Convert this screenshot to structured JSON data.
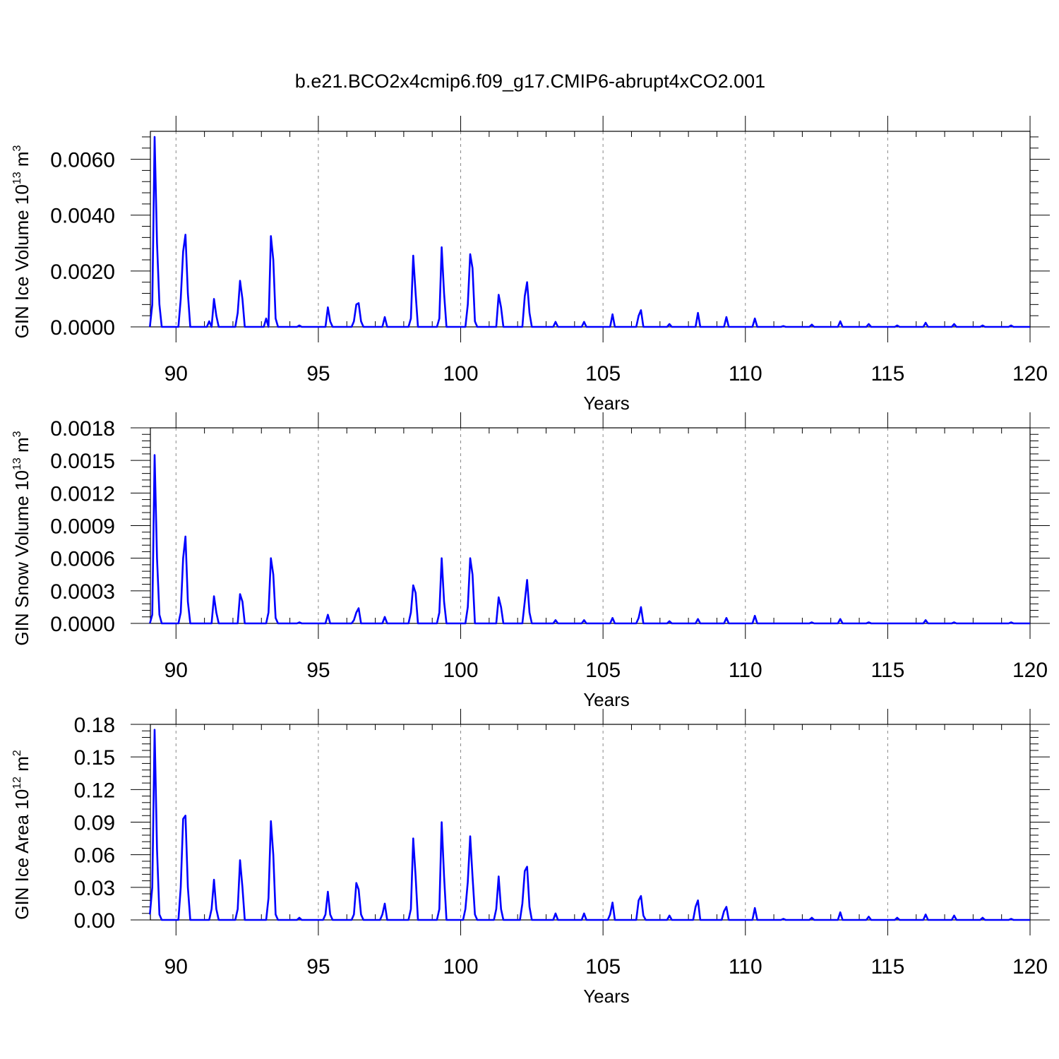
{
  "figure_title": "b.e21.BCO2x4cmip6.f09_g17.CMIP6-abrupt4xCO2.001",
  "colors": {
    "series": "#0000ff",
    "axes": "#000000",
    "grid": "#888888"
  },
  "chart_data": [
    {
      "type": "line",
      "title": "b.e21.BCO2x4cmip6.f09_g17.CMIP6-abrupt4xCO2.001",
      "xlabel": "Years",
      "ylabel": {
        "text": "GIN Ice Volume 10",
        "sup": "13",
        "unit": " m",
        "unit_sup": "3"
      },
      "xlim": [
        89.1,
        120
      ],
      "ylim": [
        0,
        0.007
      ],
      "xticks": [
        90,
        95,
        100,
        105,
        110,
        115,
        120
      ],
      "xtick_labels": [
        "90",
        "95",
        "100",
        "105",
        "110",
        "115",
        "120"
      ],
      "yticks": [
        0.0,
        0.002,
        0.004,
        0.006
      ],
      "ytick_labels": [
        "0.0000",
        "0.0020",
        "0.0040",
        "0.0060"
      ],
      "grid": "vertical dashed at major x ticks",
      "series": [
        {
          "color": "#0000ff",
          "base": 0.0,
          "peaks": [
            [
              89.2,
              0.0008
            ],
            [
              89.29,
              0.0068
            ],
            [
              89.37,
              0.003
            ],
            [
              89.45,
              0.0008
            ],
            [
              90.2,
              0.001
            ],
            [
              90.27,
              0.0027
            ],
            [
              90.33,
              0.0033
            ],
            [
              90.42,
              0.0012
            ],
            [
              91.2,
              0.0002
            ],
            [
              91.33,
              0.001
            ],
            [
              91.42,
              0.0004
            ],
            [
              92.2,
              0.0005
            ],
            [
              92.29,
              0.00165
            ],
            [
              92.37,
              0.001
            ],
            [
              93.2,
              0.0003
            ],
            [
              93.33,
              0.00325
            ],
            [
              93.42,
              0.0024
            ],
            [
              93.5,
              0.0003
            ],
            [
              94.33,
              5e-05
            ],
            [
              95.33,
              0.0007
            ],
            [
              95.42,
              0.0002
            ],
            [
              96.25,
              0.0002
            ],
            [
              96.33,
              0.0008
            ],
            [
              96.42,
              0.00085
            ],
            [
              96.5,
              0.0002
            ],
            [
              97.33,
              0.00035
            ],
            [
              98.25,
              0.0003
            ],
            [
              98.33,
              0.00255
            ],
            [
              98.42,
              0.0012
            ],
            [
              99.25,
              0.0003
            ],
            [
              99.33,
              0.00285
            ],
            [
              99.42,
              0.0012
            ],
            [
              100.25,
              0.0008
            ],
            [
              100.33,
              0.0026
            ],
            [
              100.42,
              0.0021
            ],
            [
              100.5,
              0.0002
            ],
            [
              101.33,
              0.00115
            ],
            [
              101.42,
              0.0007
            ],
            [
              102.25,
              0.0011
            ],
            [
              102.33,
              0.0016
            ],
            [
              102.42,
              0.0005
            ],
            [
              103.33,
              0.00018
            ],
            [
              104.33,
              0.00018
            ],
            [
              105.33,
              0.00045
            ],
            [
              106.25,
              0.0004
            ],
            [
              106.33,
              0.0006
            ],
            [
              107.33,
              0.0001
            ],
            [
              108.33,
              0.0005
            ],
            [
              109.33,
              0.00035
            ],
            [
              110.33,
              0.0003
            ],
            [
              111.33,
              3e-05
            ],
            [
              112.33,
              8e-05
            ],
            [
              113.33,
              0.0002
            ],
            [
              114.33,
              0.0001
            ],
            [
              115.33,
              5e-05
            ],
            [
              116.33,
              0.00015
            ],
            [
              117.33,
              0.0001
            ],
            [
              118.33,
              5e-05
            ],
            [
              119.33,
              5e-05
            ]
          ]
        }
      ]
    },
    {
      "type": "line",
      "xlabel": "Years",
      "ylabel": {
        "text": "GIN Snow Volume 10",
        "sup": "13",
        "unit": " m",
        "unit_sup": "3"
      },
      "xlim": [
        89.1,
        120
      ],
      "ylim": [
        0,
        0.0018
      ],
      "xticks": [
        90,
        95,
        100,
        105,
        110,
        115,
        120
      ],
      "xtick_labels": [
        "90",
        "95",
        "100",
        "105",
        "110",
        "115",
        "120"
      ],
      "yticks": [
        0.0,
        0.0003,
        0.0006,
        0.0009,
        0.0012,
        0.0015,
        0.0018
      ],
      "ytick_labels": [
        "0.0000",
        "0.0003",
        "0.0006",
        "0.0009",
        "0.0012",
        "0.0015",
        "0.0018"
      ],
      "grid": "vertical dashed at major x ticks",
      "series": [
        {
          "color": "#0000ff",
          "base": 0.0,
          "peaks": [
            [
              89.2,
              8e-05
            ],
            [
              89.29,
              0.00155
            ],
            [
              89.37,
              0.0006
            ],
            [
              89.45,
              8e-05
            ],
            [
              90.2,
              0.0001
            ],
            [
              90.27,
              0.0006
            ],
            [
              90.33,
              0.0008
            ],
            [
              90.42,
              0.0002
            ],
            [
              91.33,
              0.00025
            ],
            [
              91.42,
              0.0001
            ],
            [
              92.29,
              0.00027
            ],
            [
              92.37,
              0.0002
            ],
            [
              93.25,
              0.0001
            ],
            [
              93.33,
              0.0006
            ],
            [
              93.42,
              0.00045
            ],
            [
              93.5,
              5e-05
            ],
            [
              94.33,
              1e-05
            ],
            [
              95.33,
              8e-05
            ],
            [
              96.25,
              3e-05
            ],
            [
              96.33,
              0.0001
            ],
            [
              96.42,
              0.00014
            ],
            [
              97.33,
              6e-05
            ],
            [
              98.25,
              0.0001
            ],
            [
              98.33,
              0.00035
            ],
            [
              98.42,
              0.00028
            ],
            [
              99.25,
              0.0001
            ],
            [
              99.33,
              0.0006
            ],
            [
              99.42,
              0.0002
            ],
            [
              100.25,
              0.00015
            ],
            [
              100.33,
              0.0006
            ],
            [
              100.42,
              0.00045
            ],
            [
              101.33,
              0.00024
            ],
            [
              101.42,
              0.00015
            ],
            [
              102.25,
              0.0002
            ],
            [
              102.33,
              0.0004
            ],
            [
              102.42,
              0.0001
            ],
            [
              103.33,
              3e-05
            ],
            [
              104.33,
              3e-05
            ],
            [
              105.33,
              5e-05
            ],
            [
              106.25,
              5e-05
            ],
            [
              106.33,
              0.00015
            ],
            [
              107.33,
              2e-05
            ],
            [
              108.33,
              4e-05
            ],
            [
              109.33,
              5e-05
            ],
            [
              110.33,
              7e-05
            ],
            [
              112.33,
              1e-05
            ],
            [
              113.33,
              4e-05
            ],
            [
              114.33,
              1e-05
            ],
            [
              116.33,
              3e-05
            ],
            [
              117.33,
              1e-05
            ],
            [
              119.33,
              1e-05
            ]
          ]
        }
      ]
    },
    {
      "type": "line",
      "xlabel": "Years",
      "ylabel": {
        "text": "GIN Ice Area 10",
        "sup": "12",
        "unit": " m",
        "unit_sup": "2"
      },
      "xlim": [
        89.1,
        120
      ],
      "ylim": [
        0,
        0.18
      ],
      "xticks": [
        90,
        95,
        100,
        105,
        110,
        115,
        120
      ],
      "xtick_labels": [
        "90",
        "95",
        "100",
        "105",
        "110",
        "115",
        "120"
      ],
      "yticks": [
        0.0,
        0.03,
        0.06,
        0.09,
        0.12,
        0.15,
        0.18
      ],
      "ytick_labels": [
        "0.00",
        "0.03",
        "0.06",
        "0.09",
        "0.12",
        "0.15",
        "0.18"
      ],
      "grid": "vertical dashed at major x ticks",
      "series": [
        {
          "color": "#0000ff",
          "base": 0.0,
          "peaks": [
            [
              89.12,
              0.005
            ],
            [
              89.2,
              0.03
            ],
            [
              89.29,
              0.175
            ],
            [
              89.37,
              0.065
            ],
            [
              89.45,
              0.005
            ],
            [
              90.2,
              0.03
            ],
            [
              90.27,
              0.093
            ],
            [
              90.33,
              0.096
            ],
            [
              90.42,
              0.03
            ],
            [
              91.25,
              0.01
            ],
            [
              91.33,
              0.037
            ],
            [
              91.42,
              0.01
            ],
            [
              92.2,
              0.01
            ],
            [
              92.29,
              0.055
            ],
            [
              92.37,
              0.03
            ],
            [
              93.25,
              0.02
            ],
            [
              93.33,
              0.091
            ],
            [
              93.42,
              0.06
            ],
            [
              93.5,
              0.005
            ],
            [
              94.33,
              0.002
            ],
            [
              95.25,
              0.005
            ],
            [
              95.33,
              0.026
            ],
            [
              95.42,
              0.005
            ],
            [
              96.25,
              0.005
            ],
            [
              96.33,
              0.034
            ],
            [
              96.42,
              0.028
            ],
            [
              96.5,
              0.005
            ],
            [
              97.25,
              0.005
            ],
            [
              97.33,
              0.015
            ],
            [
              98.25,
              0.01
            ],
            [
              98.33,
              0.075
            ],
            [
              98.42,
              0.04
            ],
            [
              99.25,
              0.01
            ],
            [
              99.33,
              0.09
            ],
            [
              99.42,
              0.04
            ],
            [
              100.2,
              0.01
            ],
            [
              100.27,
              0.035
            ],
            [
              100.33,
              0.077
            ],
            [
              100.42,
              0.04
            ],
            [
              100.5,
              0.005
            ],
            [
              101.25,
              0.01
            ],
            [
              101.33,
              0.04
            ],
            [
              101.42,
              0.01
            ],
            [
              102.2,
              0.015
            ],
            [
              102.27,
              0.045
            ],
            [
              102.33,
              0.049
            ],
            [
              102.42,
              0.012
            ],
            [
              103.33,
              0.006
            ],
            [
              104.33,
              0.006
            ],
            [
              105.25,
              0.005
            ],
            [
              105.33,
              0.016
            ],
            [
              106.25,
              0.018
            ],
            [
              106.33,
              0.022
            ],
            [
              106.42,
              0.004
            ],
            [
              107.33,
              0.004
            ],
            [
              108.25,
              0.012
            ],
            [
              108.33,
              0.018
            ],
            [
              109.25,
              0.008
            ],
            [
              109.33,
              0.012
            ],
            [
              110.33,
              0.011
            ],
            [
              111.33,
              0.001
            ],
            [
              112.33,
              0.002
            ],
            [
              113.33,
              0.007
            ],
            [
              114.33,
              0.003
            ],
            [
              115.33,
              0.002
            ],
            [
              116.33,
              0.005
            ],
            [
              117.33,
              0.004
            ],
            [
              118.33,
              0.002
            ],
            [
              119.33,
              0.001
            ]
          ]
        }
      ]
    }
  ]
}
